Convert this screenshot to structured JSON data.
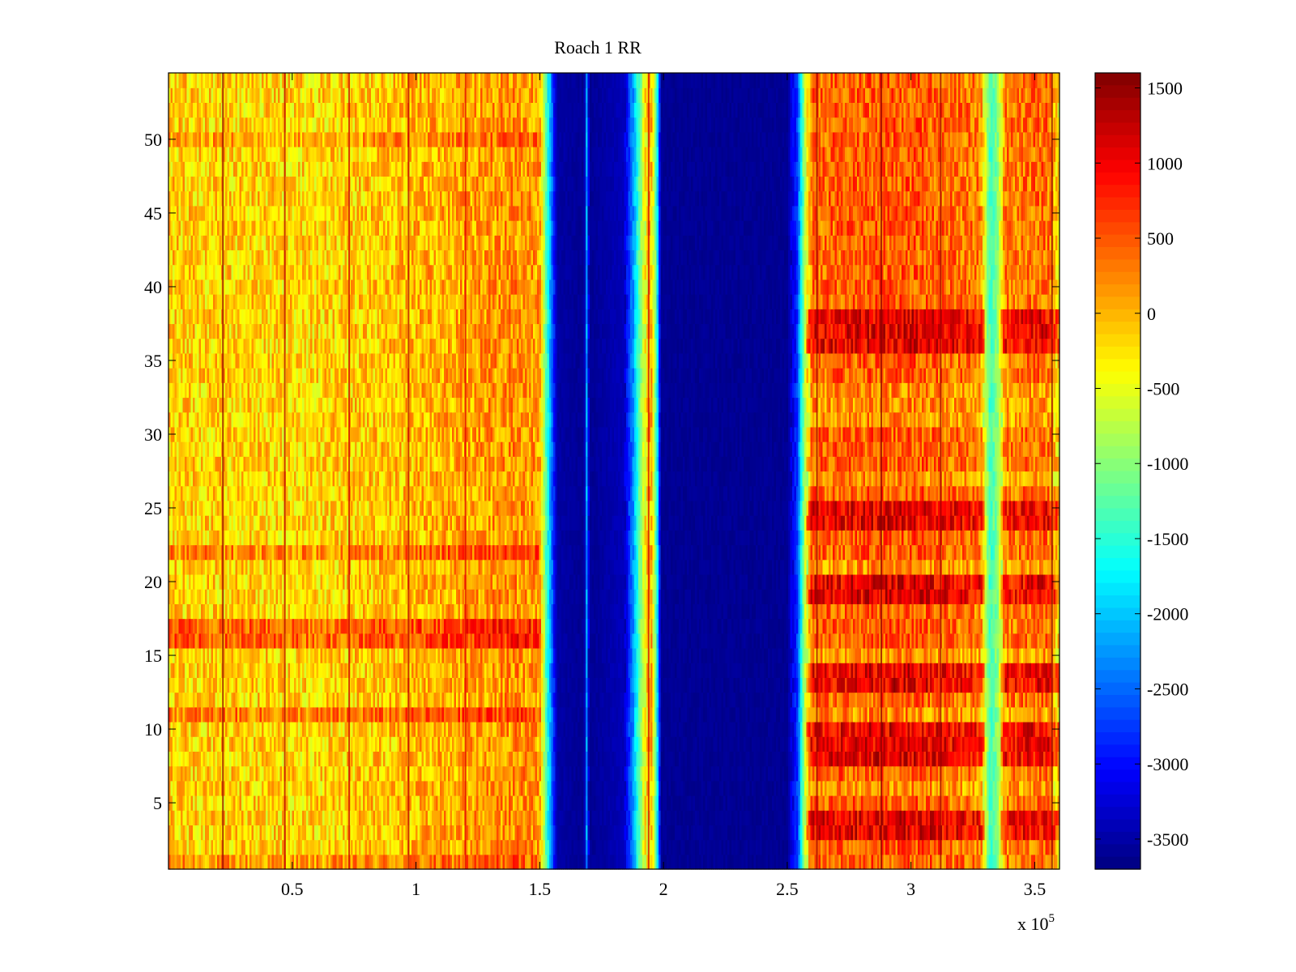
{
  "chart_data": {
    "type": "heatmap",
    "title": "Roach 1 RR",
    "xlabel": "",
    "ylabel": "",
    "x_multiplier_label": "x 10",
    "x_multiplier_exponent": "5",
    "xlim": [
      0,
      3.6
    ],
    "ylim": [
      0.5,
      54.5
    ],
    "x_ticks": [
      0.5,
      1,
      1.5,
      2,
      2.5,
      3,
      3.5
    ],
    "x_tick_labels": [
      "0.5",
      "1",
      "1.5",
      "2",
      "2.5",
      "3",
      "3.5"
    ],
    "y_ticks": [
      5,
      10,
      15,
      20,
      25,
      30,
      35,
      40,
      45,
      50
    ],
    "y_tick_labels": [
      "5",
      "10",
      "15",
      "20",
      "25",
      "30",
      "35",
      "40",
      "45",
      "50"
    ],
    "n_rows": 54,
    "colormap": "jet",
    "colorbar": {
      "range": [
        -3700,
        1600
      ],
      "ticks": [
        1500,
        1000,
        500,
        0,
        -500,
        -1000,
        -1500,
        -2000,
        -2500,
        -3000,
        -3500
      ],
      "tick_labels": [
        "1500",
        "1000",
        "500",
        "0",
        "-500",
        "-1000",
        "-1500",
        "-2000",
        "-2500",
        "-3000",
        "-3500"
      ]
    },
    "column_profile": [
      {
        "x": 0.0,
        "value": -150
      },
      {
        "x": 0.6,
        "value": -200
      },
      {
        "x": 1.0,
        "value": -50
      },
      {
        "x": 1.4,
        "value": 200
      },
      {
        "x": 1.5,
        "value": 100
      },
      {
        "x": 1.53,
        "value": -1500
      },
      {
        "x": 1.57,
        "value": -3500
      },
      {
        "x": 1.68,
        "value": -3600
      },
      {
        "x": 1.69,
        "value": -2200
      },
      {
        "x": 1.7,
        "value": -3600
      },
      {
        "x": 1.84,
        "value": -3400
      },
      {
        "x": 1.88,
        "value": -2200
      },
      {
        "x": 1.92,
        "value": -500
      },
      {
        "x": 1.95,
        "value": 0
      },
      {
        "x": 1.97,
        "value": -1200
      },
      {
        "x": 1.99,
        "value": -3600
      },
      {
        "x": 2.5,
        "value": -3600
      },
      {
        "x": 2.54,
        "value": -2800
      },
      {
        "x": 2.57,
        "value": -800
      },
      {
        "x": 2.6,
        "value": 400
      },
      {
        "x": 3.0,
        "value": 500
      },
      {
        "x": 3.28,
        "value": 300
      },
      {
        "x": 3.32,
        "value": -1400
      },
      {
        "x": 3.35,
        "value": -1000
      },
      {
        "x": 3.38,
        "value": 300
      },
      {
        "x": 3.55,
        "value": 400
      },
      {
        "x": 3.58,
        "value": 0
      },
      {
        "x": 3.6,
        "value": -300
      }
    ],
    "row_offsets_left": [
      {
        "rows": [
          16,
          17
        ],
        "value": 600
      },
      {
        "rows": [
          11
        ],
        "value": 450
      },
      {
        "rows": [
          22
        ],
        "value": 400
      },
      {
        "rows": [
          50
        ],
        "value": 250
      },
      {
        "rows": [
          1
        ],
        "value": 300
      }
    ],
    "row_offsets_right": [
      {
        "rows": [
          3,
          4,
          8,
          9,
          10,
          13,
          14,
          19,
          20,
          24,
          25,
          36,
          37,
          38
        ],
        "value": 600
      },
      {
        "rows": [
          6,
          11,
          15,
          21,
          27,
          31,
          32,
          33
        ],
        "value": -250
      }
    ],
    "vertical_streaks": [
      {
        "x": 0.22,
        "value": 1500
      },
      {
        "x": 0.47,
        "value": 1300
      },
      {
        "x": 0.73,
        "value": 1200
      },
      {
        "x": 0.97,
        "value": 1300
      },
      {
        "x": 1.2,
        "value": 1100
      },
      {
        "x": 1.94,
        "value": 1200
      },
      {
        "x": 2.62,
        "value": 1400
      },
      {
        "x": 2.88,
        "value": 1500
      },
      {
        "x": 3.12,
        "value": 1400
      },
      {
        "x": 3.57,
        "value": 1500
      }
    ]
  }
}
